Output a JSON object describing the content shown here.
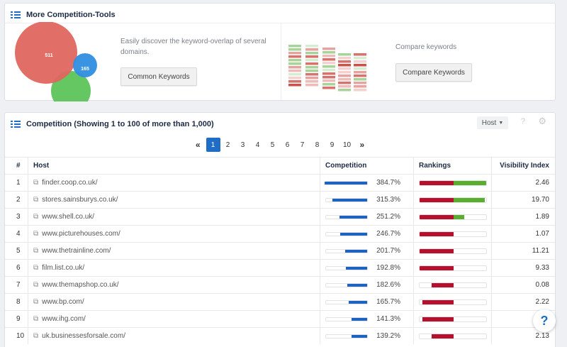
{
  "tools": {
    "title": "More Competition-Tools",
    "venn": {
      "big": "511",
      "small": "165",
      "colors": {
        "big": "#e0675f",
        "small": "#2f8ee0",
        "green": "#5cc45a"
      }
    },
    "common_desc": "Easily discover the keyword-overlap of several domains.",
    "common_button": "Common Keywords",
    "compare_desc": "Compare keywords",
    "compare_button": "Compare Keywords"
  },
  "competition": {
    "title": "Competition (Showing 1 to 100 of more than 1,000)",
    "host_select": "Host",
    "help_icon": "?",
    "pages": [
      "1",
      "2",
      "3",
      "4",
      "5",
      "6",
      "7",
      "8",
      "9",
      "10"
    ],
    "current_page": "1",
    "columns": {
      "num": "#",
      "host": "Host",
      "competition": "Competition",
      "rankings": "Rankings",
      "visibility": "Visibility Index"
    },
    "rows": [
      {
        "num": "1",
        "host": "finder.coop.co.uk/",
        "competition": "384.7%",
        "comp_fill": 1.0,
        "rank_red": 0.5,
        "rank_green": 0.5,
        "visibility": "2.46"
      },
      {
        "num": "2",
        "host": "stores.sainsburys.co.uk/",
        "competition": "315.3%",
        "comp_fill": 0.82,
        "rank_red": 0.5,
        "rank_green": 0.46,
        "visibility": "19.70"
      },
      {
        "num": "3",
        "host": "www.shell.co.uk/",
        "competition": "251.2%",
        "comp_fill": 0.65,
        "rank_red": 0.5,
        "rank_green": 0.16,
        "visibility": "1.89"
      },
      {
        "num": "4",
        "host": "www.picturehouses.com/",
        "competition": "246.7%",
        "comp_fill": 0.64,
        "rank_red": 0.5,
        "rank_green": 0,
        "visibility": "1.07"
      },
      {
        "num": "5",
        "host": "www.thetrainline.com/",
        "competition": "201.7%",
        "comp_fill": 0.52,
        "rank_red": 0.5,
        "rank_green": 0,
        "visibility": "11.21"
      },
      {
        "num": "6",
        "host": "film.list.co.uk/",
        "competition": "192.8%",
        "comp_fill": 0.5,
        "rank_red": 0.5,
        "rank_green": 0,
        "visibility": "9.33"
      },
      {
        "num": "7",
        "host": "www.themapshop.co.uk/",
        "competition": "182.6%",
        "comp_fill": 0.47,
        "rank_red": 0.32,
        "rank_green": 0,
        "visibility": "0.08"
      },
      {
        "num": "8",
        "host": "www.bp.com/",
        "competition": "165.7%",
        "comp_fill": 0.43,
        "rank_red": 0.46,
        "rank_green": 0,
        "visibility": "2.22"
      },
      {
        "num": "9",
        "host": "www.ihg.com/",
        "competition": "141.3%",
        "comp_fill": 0.37,
        "rank_red": 0.46,
        "rank_green": 0,
        "visibility": ""
      },
      {
        "num": "10",
        "host": "uk.businessesforsale.com/",
        "competition": "139.2%",
        "comp_fill": 0.36,
        "rank_red": 0.32,
        "rank_green": 0,
        "visibility": "2.13"
      }
    ],
    "colors": {
      "comp_bar": "#1e63bf",
      "rank_red": "#b8102c",
      "rank_green": "#5aae2d",
      "accent": "#1f6dc7"
    }
  },
  "help_fab": "?"
}
